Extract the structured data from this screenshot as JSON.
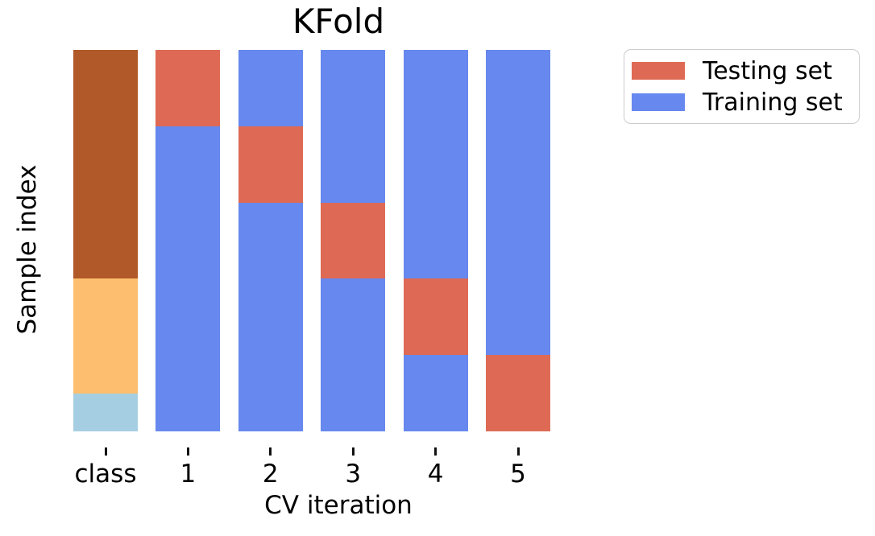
{
  "figure": {
    "background": "#ffffff",
    "text_color": "#000000"
  },
  "chart_data": {
    "type": "bar",
    "title": "KFold",
    "xlabel": "CV iteration",
    "ylabel": "Sample index",
    "categories": [
      "class",
      "1",
      "2",
      "3",
      "4",
      "5"
    ],
    "n_splits": 5,
    "test_fraction_per_fold": 0.2,
    "grid": false,
    "legend_position": "upper right, outside axes",
    "colors": {
      "testing": "#de6a55",
      "training": "#6788ee",
      "class_top": "#b15928",
      "class_middle": "#fdbf6f",
      "class_bottom": "#a6cee3"
    },
    "legend": [
      {
        "label": "Testing set",
        "color": "#de6a55"
      },
      {
        "label": "Training set",
        "color": "#6788ee"
      }
    ],
    "class_distribution_top_to_bottom": [
      {
        "segment": "class-top",
        "fraction": 0.6,
        "color": "#b15928"
      },
      {
        "segment": "class-middle",
        "fraction": 0.3,
        "color": "#fdbf6f"
      },
      {
        "segment": "class-bottom",
        "fraction": 0.1,
        "color": "#a6cee3"
      }
    ],
    "columns": [
      {
        "name": "class",
        "segments": [
          {
            "label": "class-top",
            "fraction": 0.6,
            "color": "#b15928"
          },
          {
            "label": "class-middle",
            "fraction": 0.3,
            "color": "#fdbf6f"
          },
          {
            "label": "class-bottom",
            "fraction": 0.1,
            "color": "#a6cee3"
          }
        ]
      },
      {
        "name": "1",
        "segments": [
          {
            "label": "test",
            "fraction": 0.2,
            "color": "#de6a55"
          },
          {
            "label": "train",
            "fraction": 0.8,
            "color": "#6788ee"
          }
        ]
      },
      {
        "name": "2",
        "segments": [
          {
            "label": "train",
            "fraction": 0.2,
            "color": "#6788ee"
          },
          {
            "label": "test",
            "fraction": 0.2,
            "color": "#de6a55"
          },
          {
            "label": "train",
            "fraction": 0.6,
            "color": "#6788ee"
          }
        ]
      },
      {
        "name": "3",
        "segments": [
          {
            "label": "train",
            "fraction": 0.4,
            "color": "#6788ee"
          },
          {
            "label": "test",
            "fraction": 0.2,
            "color": "#de6a55"
          },
          {
            "label": "train",
            "fraction": 0.4,
            "color": "#6788ee"
          }
        ]
      },
      {
        "name": "4",
        "segments": [
          {
            "label": "train",
            "fraction": 0.6,
            "color": "#6788ee"
          },
          {
            "label": "test",
            "fraction": 0.2,
            "color": "#de6a55"
          },
          {
            "label": "train",
            "fraction": 0.2,
            "color": "#6788ee"
          }
        ]
      },
      {
        "name": "5",
        "segments": [
          {
            "label": "train",
            "fraction": 0.8,
            "color": "#6788ee"
          },
          {
            "label": "test",
            "fraction": 0.2,
            "color": "#de6a55"
          }
        ]
      }
    ]
  }
}
